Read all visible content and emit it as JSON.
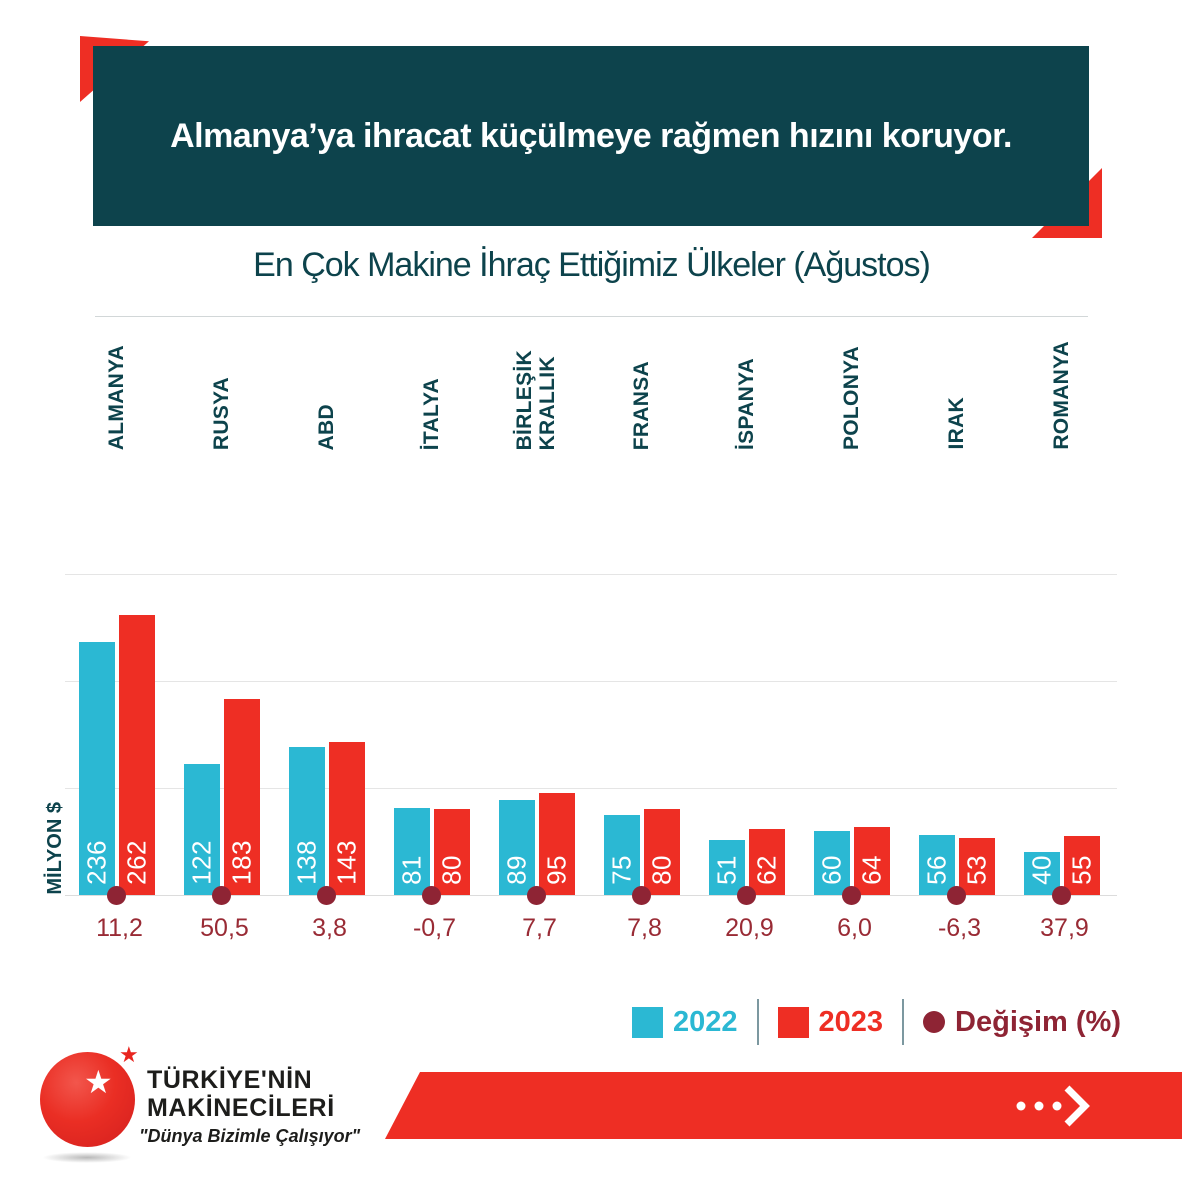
{
  "header": {
    "banner_text": "Almanya’ya ihracat küçülmeye rağmen hızını koruyor."
  },
  "chart_data": {
    "type": "bar",
    "title": "En Çok Makine İhraç Ettiğimiz Ülkeler (Ağustos)",
    "ylabel": "MİLYON $",
    "ylim": [
      0,
      300
    ],
    "gridlines": [
      100,
      200,
      300
    ],
    "grid": "horizontal-light",
    "legend_position": "bottom-right",
    "categories": [
      "ALMANYA",
      "RUSYA",
      "ABD",
      "İTALYA",
      "BİRLEŞİK\nKRALLIK",
      "FRANSA",
      "İSPANYA",
      "POLONYA",
      "IRAK",
      "ROMANYA"
    ],
    "series": [
      {
        "name": "2022",
        "color": "#2bb8d3",
        "values": [
          236,
          122,
          138,
          81,
          89,
          75,
          51,
          60,
          56,
          40
        ]
      },
      {
        "name": "2023",
        "color": "#ee2e24",
        "values": [
          262,
          183,
          143,
          80,
          95,
          80,
          62,
          64,
          53,
          55
        ]
      }
    ],
    "change": {
      "name": "Değişim (%)",
      "color": "#8e2434",
      "values": [
        11.2,
        50.5,
        3.8,
        -0.7,
        7.7,
        7.8,
        20.9,
        6.0,
        -6.3,
        37.9
      ],
      "labels": [
        "11,2",
        "50,5",
        "3,8",
        "-0,7",
        "7,7",
        "7,8",
        "20,9",
        "6,0",
        "-6,3",
        "37,9"
      ]
    }
  },
  "colors": {
    "teal": "#0d434c",
    "cyan": "#2bb8d3",
    "red": "#ee2e24",
    "maroon": "#8e2434",
    "change_text": "#992b35"
  },
  "footer": {
    "brand_line1": "TÜRKİYE'NİN",
    "brand_line2": "MAKİNECİLERİ",
    "tagline": "\"Dünya Bizimle Çalışıyor\""
  }
}
